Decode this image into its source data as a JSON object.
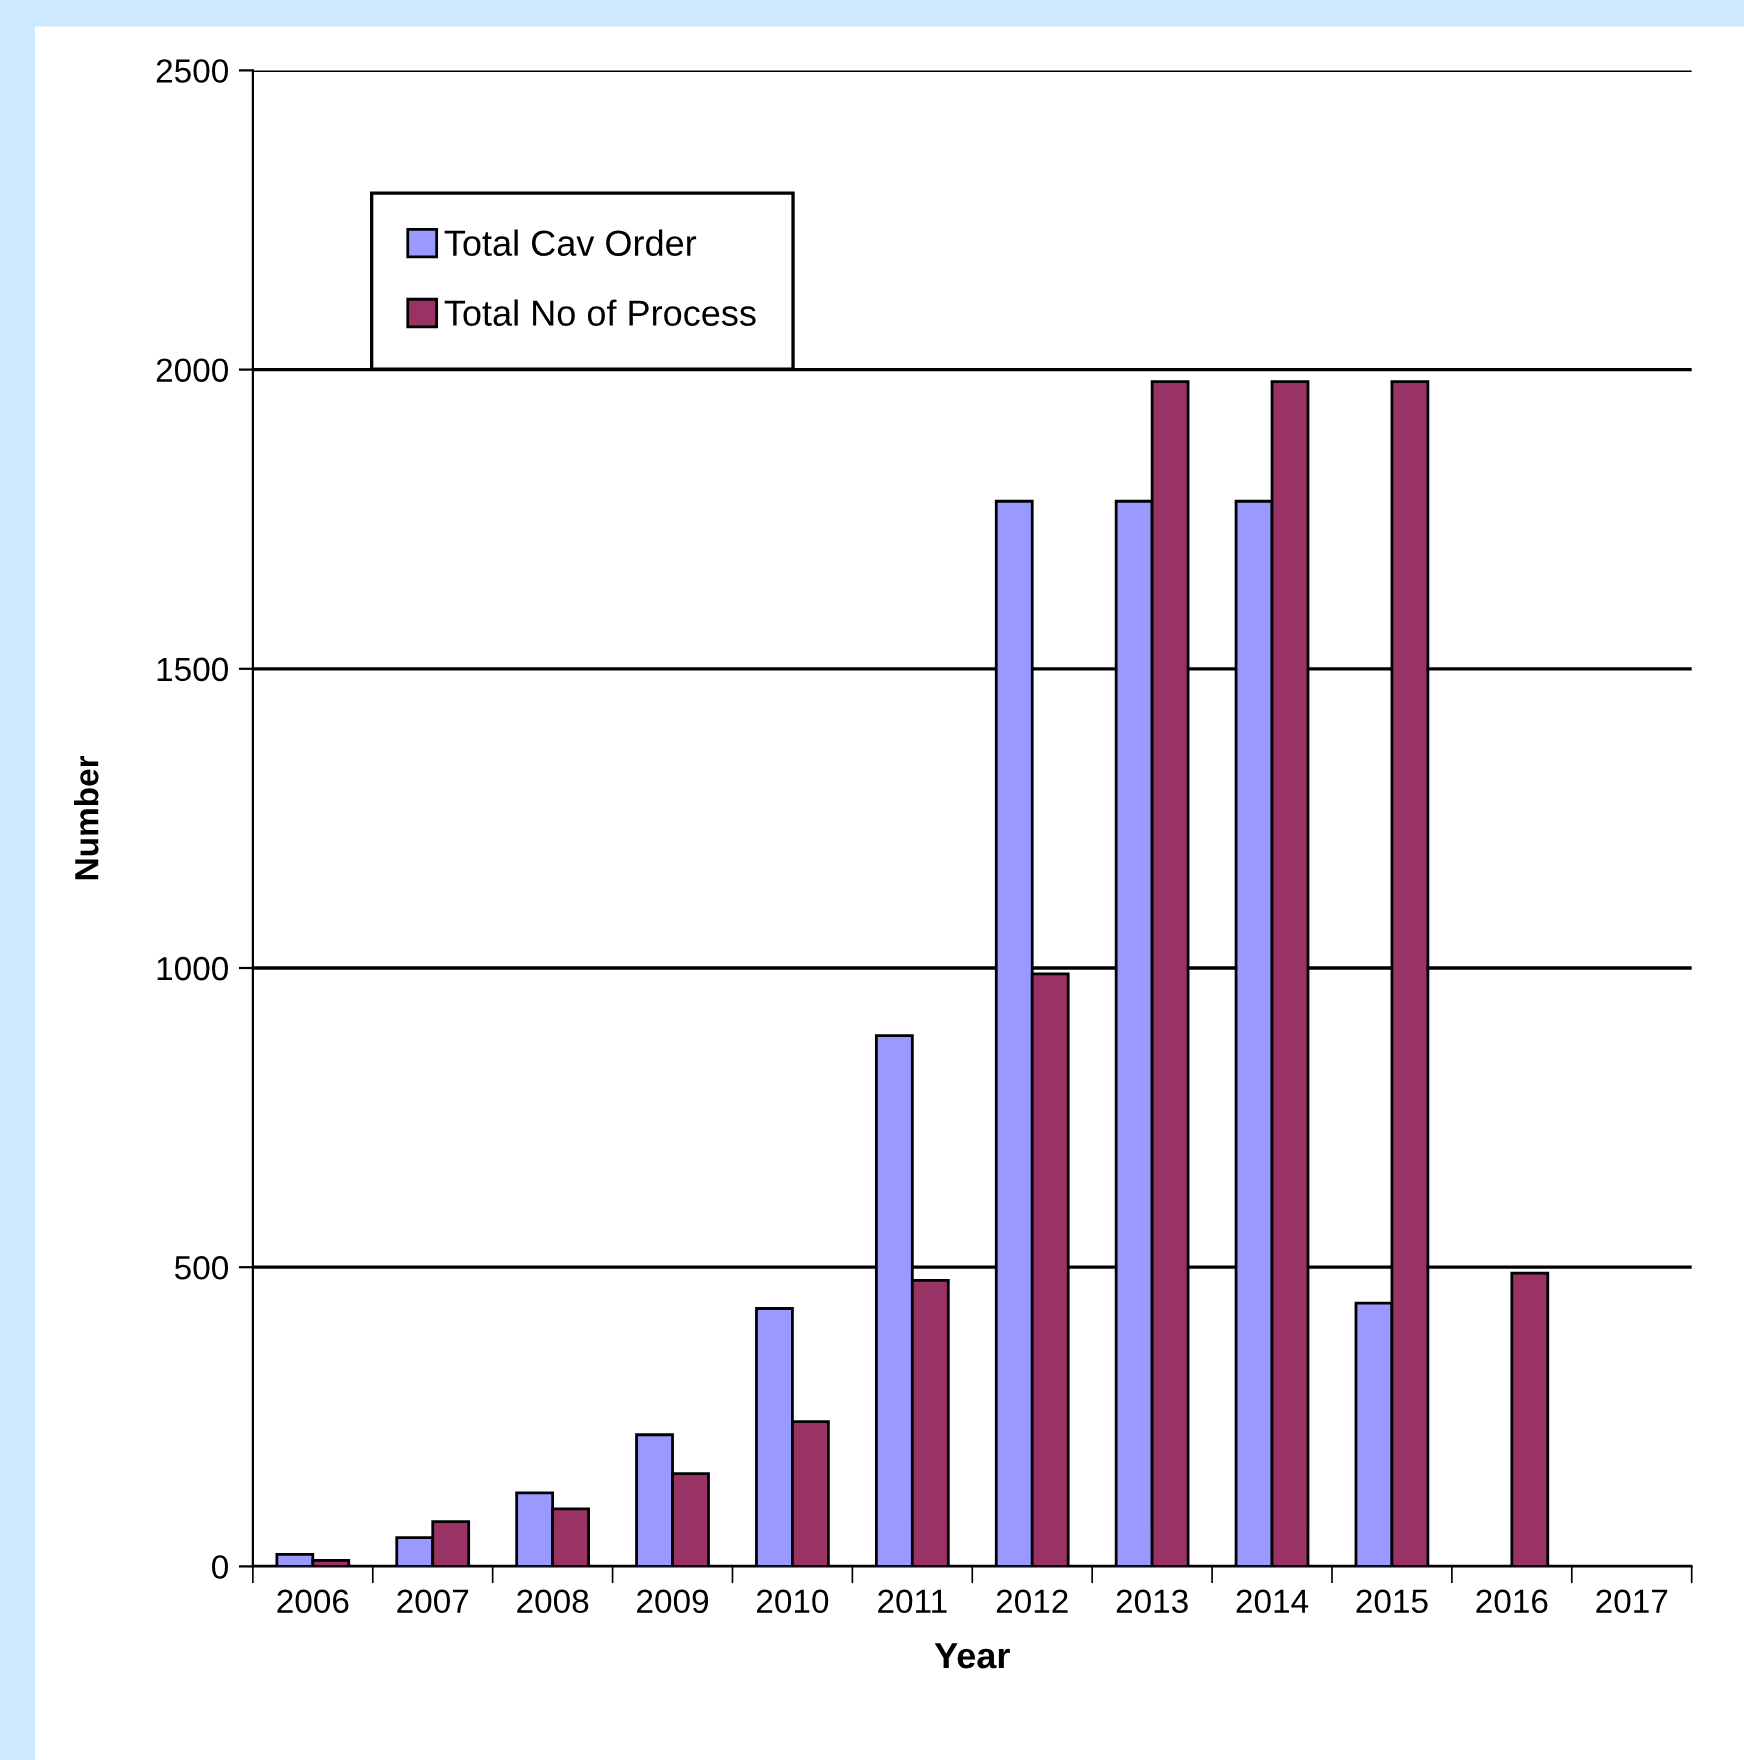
{
  "chart_data": {
    "type": "bar",
    "xlabel": "Year",
    "ylabel": "Number",
    "categories": [
      "2006",
      "2007",
      "2008",
      "2009",
      "2010",
      "2011",
      "2012",
      "2013",
      "2014",
      "2015",
      "2016",
      "2017"
    ],
    "series": [
      {
        "name": "Total Cav Order",
        "color": "#9999ff",
        "values": [
          20,
          48,
          123,
          220,
          431,
          887,
          1780,
          1780,
          1780,
          440,
          null,
          null
        ]
      },
      {
        "name": "Total No of Process",
        "color": "#993366",
        "values": [
          10,
          75,
          96,
          155,
          242,
          478,
          990,
          1980,
          1980,
          1980,
          490,
          null
        ]
      }
    ],
    "ylim": [
      0,
      2500
    ],
    "yticks": [
      0,
      500,
      1000,
      1500,
      2000,
      2500
    ],
    "grid": "y",
    "legend": "top left"
  }
}
